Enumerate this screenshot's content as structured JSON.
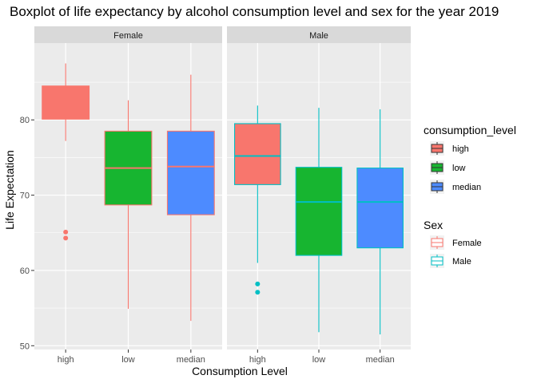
{
  "chart_data": {
    "type": "boxplot",
    "title": "Boxplot of life expectancy by alcohol consumption level and sex for the year 2019",
    "xlabel": "Consumption Level",
    "ylabel": "Life Expectation",
    "ylim": [
      49.5,
      90.2
    ],
    "yticks": [
      50,
      60,
      70,
      80
    ],
    "categories": [
      "high",
      "low",
      "median"
    ],
    "panels": [
      {
        "name": "Female",
        "boxes": [
          {
            "category": "high",
            "min": 77.2,
            "q1": 80.1,
            "median": 80.2,
            "q3": 84.5,
            "max": 87.5,
            "outliers": [
              65.1,
              64.3
            ]
          },
          {
            "category": "low",
            "min": 54.9,
            "q1": 68.7,
            "median": 73.6,
            "q3": 78.5,
            "max": 82.6,
            "outliers": []
          },
          {
            "category": "median",
            "min": 53.3,
            "q1": 67.4,
            "median": 73.8,
            "q3": 78.5,
            "max": 86.0,
            "outliers": []
          }
        ]
      },
      {
        "name": "Male",
        "boxes": [
          {
            "category": "high",
            "min": 61.0,
            "q1": 71.4,
            "median": 75.2,
            "q3": 79.5,
            "max": 81.9,
            "outliers": [
              58.2,
              57.1
            ]
          },
          {
            "category": "low",
            "min": 51.8,
            "q1": 62.0,
            "median": 69.1,
            "q3": 73.7,
            "max": 81.6,
            "outliers": []
          },
          {
            "category": "median",
            "min": 51.5,
            "q1": 63.0,
            "median": 69.1,
            "q3": 73.6,
            "max": 81.4,
            "outliers": []
          }
        ]
      }
    ],
    "legends": [
      {
        "title": "consumption_level",
        "aesthetic": "fill",
        "entries": [
          {
            "label": "high",
            "color": "#F8766D"
          },
          {
            "label": "low",
            "color": "#17B530"
          },
          {
            "label": "median",
            "color": "#4D8BFF"
          }
        ]
      },
      {
        "title": "Sex",
        "aesthetic": "outline",
        "entries": [
          {
            "label": "Female",
            "color": "#F8766D"
          },
          {
            "label": "Male",
            "color": "#00BFC4"
          }
        ]
      }
    ],
    "legend_position": "right",
    "grid": true,
    "panel_background": "#EBEBEB",
    "strip_background": "#D9D9D9"
  }
}
